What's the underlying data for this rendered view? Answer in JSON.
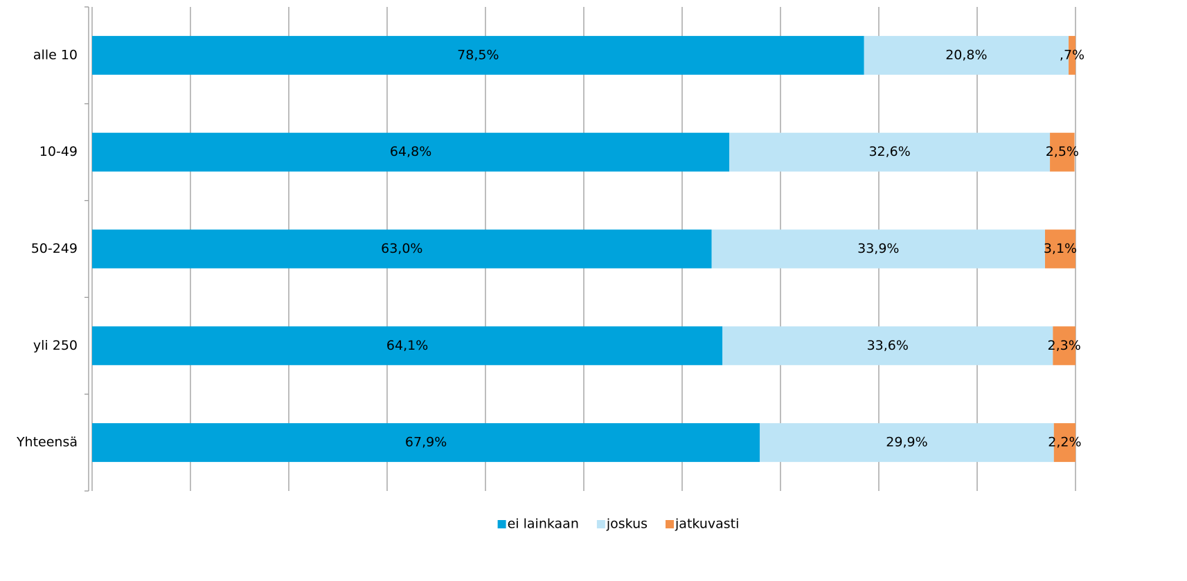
{
  "chart_data": {
    "type": "stacked-barh",
    "categories": [
      "alle 10",
      "10-49",
      "50-249",
      "yli 250",
      "Yhteensä"
    ],
    "series": [
      {
        "name": "ei lainkaan",
        "color": "#00a3dc",
        "values": [
          78.5,
          64.8,
          63.0,
          64.1,
          67.9
        ],
        "value_labels": [
          "78,5%",
          "64,8%",
          "63,0%",
          "64,1%",
          "67,9%"
        ]
      },
      {
        "name": "joskus",
        "color": "#bde4f6",
        "values": [
          20.8,
          32.6,
          33.9,
          33.6,
          29.9
        ],
        "value_labels": [
          "20,8%",
          "32,6%",
          "33,9%",
          "33,6%",
          "29,9%"
        ]
      },
      {
        "name": "jatkuvasti",
        "color": "#f3914a",
        "values": [
          0.7,
          2.5,
          3.1,
          2.3,
          2.2
        ],
        "value_labels": [
          ",7%",
          "2,5%",
          "3,1%",
          "2,3%",
          "2,2%"
        ]
      }
    ],
    "xlim": [
      0,
      100
    ],
    "xticks": [
      0,
      10,
      20,
      30,
      40,
      50,
      60,
      70,
      80,
      90,
      100
    ],
    "grid": true,
    "legend": "bottom"
  }
}
